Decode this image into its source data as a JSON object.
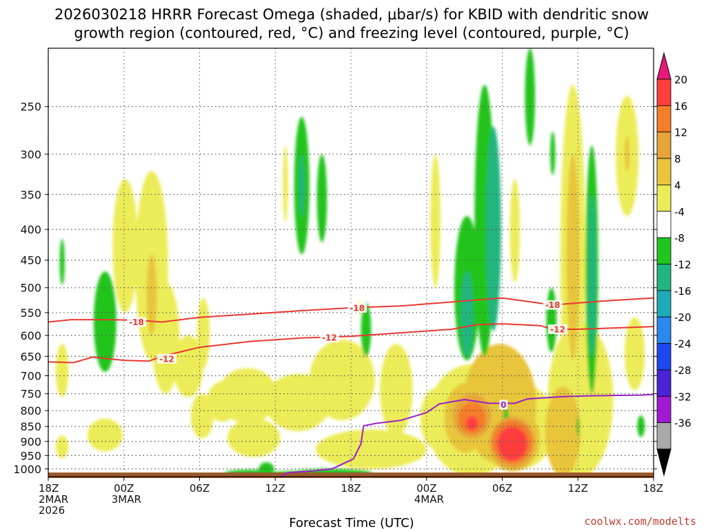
{
  "chart_data": {
    "type": "heatmap",
    "title_lines": [
      "2026030218 HRRR Forecast Omega (shaded, μbar/s) for KBID with dendritic snow",
      "growth region (contoured, red, °C) and freezing level (contoured, purple, °C)"
    ],
    "xlabel": "Forecast Time (UTC)",
    "credit": "coolwx.com/modelts",
    "x_ticks": [
      {
        "h": 0,
        "lines": [
          "18Z",
          "2MAR",
          "2026"
        ]
      },
      {
        "h": 6,
        "lines": [
          "00Z",
          "3MAR"
        ]
      },
      {
        "h": 12,
        "lines": [
          "06Z"
        ]
      },
      {
        "h": 18,
        "lines": [
          "12Z"
        ]
      },
      {
        "h": 24,
        "lines": [
          "18Z"
        ]
      },
      {
        "h": 30,
        "lines": [
          "00Z",
          "4MAR"
        ]
      },
      {
        "h": 36,
        "lines": [
          "06Z"
        ]
      },
      {
        "h": 42,
        "lines": [
          "12Z"
        ]
      },
      {
        "h": 48,
        "lines": [
          "18Z"
        ]
      }
    ],
    "xlim_hours": [
      0,
      48
    ],
    "y_pressure_ticks": [
      250,
      300,
      350,
      400,
      450,
      500,
      550,
      600,
      650,
      700,
      750,
      800,
      850,
      900,
      950,
      1000
    ],
    "ylim_hPa": [
      200,
      1030
    ],
    "colorbar": {
      "labels": [
        "20",
        "16",
        "12",
        "8",
        "4",
        "-4",
        "-8",
        "-12",
        "-16",
        "-20",
        "-24",
        "-28",
        "-32",
        "-36"
      ],
      "levels": [
        20,
        16,
        12,
        8,
        4,
        -4,
        -8,
        -12,
        -16,
        -20,
        -24,
        -28,
        -32,
        -36
      ],
      "colors": [
        "#ff3e3e",
        "#f47d2a",
        "#e6a43a",
        "#e8c53b",
        "#ecec58",
        "#ffffff",
        "#22c41f",
        "#22b57e",
        "#20aab8",
        "#2a88ee",
        "#1c48ee",
        "#4a24d6",
        "#a01ad0",
        "#a8a8a8"
      ],
      "top_color": "#e8187a",
      "bottom_color": "#000000"
    },
    "omega_blobs": [
      {
        "h": 1.1,
        "p": 690,
        "rh": 0.5,
        "rp": 70,
        "level": 4
      },
      {
        "h": 1.1,
        "p": 920,
        "rh": 0.5,
        "rp": 40,
        "level": 4
      },
      {
        "h": 1.1,
        "p": 455,
        "rh": 0.2,
        "rp": 40,
        "level": -8
      },
      {
        "h": 4.5,
        "p": 580,
        "rh": 0.9,
        "rp": 110,
        "level": -8
      },
      {
        "h": 4.5,
        "p": 880,
        "rh": 1.4,
        "rp": 55,
        "level": 4
      },
      {
        "h": 6.1,
        "p": 440,
        "rh": 1.0,
        "rp": 110,
        "level": 4
      },
      {
        "h": 8.2,
        "p": 490,
        "rh": 1.3,
        "rp": 170,
        "level": 4
      },
      {
        "h": 8.2,
        "p": 520,
        "rh": 0.4,
        "rp": 80,
        "level": 8
      },
      {
        "h": 9.3,
        "p": 620,
        "rh": 1.1,
        "rp": 130,
        "level": 4
      },
      {
        "h": 11.1,
        "p": 680,
        "rh": 1.2,
        "rp": 80,
        "level": 4
      },
      {
        "h": 12.3,
        "p": 600,
        "rh": 0.5,
        "rp": 80,
        "level": 4
      },
      {
        "h": 12.2,
        "p": 820,
        "rh": 0.9,
        "rp": 70,
        "level": 4
      },
      {
        "h": 13.8,
        "p": 775,
        "rh": 1.2,
        "rp": 60,
        "level": 4
      },
      {
        "h": 15.8,
        "p": 760,
        "rh": 2.4,
        "rp": 80,
        "level": 4
      },
      {
        "h": 16.3,
        "p": 890,
        "rh": 2.1,
        "rp": 65,
        "level": 4
      },
      {
        "h": 19.8,
        "p": 780,
        "rh": 2.6,
        "rp": 85,
        "level": 4
      },
      {
        "h": 23.3,
        "p": 720,
        "rh": 2.6,
        "rp": 110,
        "level": 4
      },
      {
        "h": 25.6,
        "p": 930,
        "rh": 4.4,
        "rp": 70,
        "level": 4
      },
      {
        "h": 27.6,
        "p": 750,
        "rh": 1.3,
        "rp": 130,
        "level": 4
      },
      {
        "h": 24.7,
        "p": 540,
        "rh": 0.2,
        "rp": 12,
        "level": 4
      },
      {
        "h": 18.8,
        "p": 340,
        "rh": 0.2,
        "rp": 50,
        "level": 4
      },
      {
        "h": 20.1,
        "p": 350,
        "rh": 0.6,
        "rp": 90,
        "level": -8
      },
      {
        "h": 20.1,
        "p": 340,
        "rh": 0.2,
        "rp": 40,
        "level": -12
      },
      {
        "h": 21.7,
        "p": 360,
        "rh": 0.4,
        "rp": 60,
        "level": -8
      },
      {
        "h": 25.2,
        "p": 590,
        "rh": 0.4,
        "rp": 60,
        "level": -8
      },
      {
        "h": 30.7,
        "p": 400,
        "rh": 0.4,
        "rp": 100,
        "level": 4
      },
      {
        "h": 30.7,
        "p": 830,
        "rh": 1.2,
        "rp": 95,
        "level": 4
      },
      {
        "h": 33.6,
        "p": 850,
        "rh": 3.6,
        "rp": 180,
        "level": 4
      },
      {
        "h": 35.8,
        "p": 800,
        "rh": 2.9,
        "rp": 180,
        "level": 8
      },
      {
        "h": 37.4,
        "p": 860,
        "rh": 2.8,
        "rp": 140,
        "level": 4
      },
      {
        "h": 33.1,
        "p": 830,
        "rh": 1.7,
        "rp": 110,
        "level": 8
      },
      {
        "h": 33.6,
        "p": 820,
        "rh": 1.5,
        "rp": 70,
        "level": 12
      },
      {
        "h": 33.6,
        "p": 825,
        "rh": 1.1,
        "rp": 50,
        "level": 16
      },
      {
        "h": 33.6,
        "p": 840,
        "rh": 0.5,
        "rp": 22,
        "level": 20
      },
      {
        "h": 36.8,
        "p": 900,
        "rh": 2.2,
        "rp": 110,
        "level": 8
      },
      {
        "h": 36.8,
        "p": 910,
        "rh": 1.8,
        "rp": 90,
        "level": 12
      },
      {
        "h": 36.8,
        "p": 905,
        "rh": 1.6,
        "rp": 75,
        "level": 16
      },
      {
        "h": 36.8,
        "p": 910,
        "rh": 1.2,
        "rp": 60,
        "level": 20
      },
      {
        "h": 34.6,
        "p": 440,
        "rh": 0.8,
        "rp": 210,
        "level": -8
      },
      {
        "h": 33.2,
        "p": 520,
        "rh": 1.0,
        "rp": 140,
        "level": -8
      },
      {
        "h": 33.2,
        "p": 560,
        "rh": 0.5,
        "rp": 90,
        "level": -12
      },
      {
        "h": 35.3,
        "p": 430,
        "rh": 0.6,
        "rp": 160,
        "level": -12
      },
      {
        "h": 36.3,
        "p": 820,
        "rh": 0.2,
        "rp": 30,
        "level": -8
      },
      {
        "h": 38.2,
        "p": 220,
        "rh": 0.4,
        "rp": 70,
        "level": -8
      },
      {
        "h": 37.0,
        "p": 410,
        "rh": 0.4,
        "rp": 80,
        "level": 4
      },
      {
        "h": 39.9,
        "p": 570,
        "rh": 0.4,
        "rp": 70,
        "level": -8
      },
      {
        "h": 41.6,
        "p": 560,
        "rh": 1.0,
        "rp": 330,
        "level": 4
      },
      {
        "h": 41.6,
        "p": 480,
        "rh": 0.5,
        "rp": 180,
        "level": 8
      },
      {
        "h": 43.1,
        "p": 520,
        "rh": 0.5,
        "rp": 230,
        "level": -8
      },
      {
        "h": 43.1,
        "p": 500,
        "rh": 0.3,
        "rp": 150,
        "level": -12
      },
      {
        "h": 42.2,
        "p": 800,
        "rh": 2.6,
        "rp": 230,
        "level": 4
      },
      {
        "h": 40.8,
        "p": 880,
        "rh": 1.4,
        "rp": 150,
        "level": 8
      },
      {
        "h": 40.0,
        "p": 300,
        "rh": 0.2,
        "rp": 25,
        "level": -8
      },
      {
        "h": 45.9,
        "p": 310,
        "rh": 0.9,
        "rp": 70,
        "level": 4
      },
      {
        "h": 45.9,
        "p": 300,
        "rh": 0.2,
        "rp": 20,
        "level": 8
      },
      {
        "h": 46.5,
        "p": 650,
        "rh": 0.8,
        "rp": 90,
        "level": 4
      },
      {
        "h": 47.0,
        "p": 850,
        "rh": 0.3,
        "rp": 35,
        "level": -8
      },
      {
        "h": 42.0,
        "p": 850,
        "rh": 0.1,
        "rp": 30,
        "level": -8
      },
      {
        "h": 22.5,
        "p": 1015,
        "rh": 3.2,
        "rp": 15,
        "level": -8
      },
      {
        "h": 20.0,
        "p": 1020,
        "rh": 2.8,
        "rp": 12,
        "level": -8
      },
      {
        "h": 17.3,
        "p": 1000,
        "rh": 0.6,
        "rp": 25,
        "level": -8
      },
      {
        "h": 16.0,
        "p": 1015,
        "rh": 2.0,
        "rp": 12,
        "level": -8
      }
    ],
    "contours": [
      {
        "label": "-18",
        "color": "#e8372f",
        "points": [
          [
            0,
            570
          ],
          [
            1.8,
            565
          ],
          [
            4.5,
            565
          ],
          [
            7,
            566
          ],
          [
            9,
            570
          ],
          [
            12,
            560
          ],
          [
            16,
            553
          ],
          [
            20,
            546
          ],
          [
            24,
            540
          ],
          [
            28,
            536
          ],
          [
            32,
            528
          ],
          [
            36,
            520
          ],
          [
            40,
            534
          ],
          [
            44,
            526
          ],
          [
            48,
            520
          ]
        ],
        "label_at": [
          [
            7,
            570
          ],
          [
            24.5,
            540
          ],
          [
            40,
            534
          ]
        ]
      },
      {
        "label": "-12",
        "color": "#e8372f",
        "points": [
          [
            0,
            664
          ],
          [
            2,
            666
          ],
          [
            3.5,
            652
          ],
          [
            6,
            660
          ],
          [
            8,
            662
          ],
          [
            9,
            650
          ],
          [
            12,
            628
          ],
          [
            16,
            614
          ],
          [
            20,
            606
          ],
          [
            24,
            602
          ],
          [
            28,
            594
          ],
          [
            32,
            586
          ],
          [
            34,
            576
          ],
          [
            36,
            574
          ],
          [
            39,
            578
          ],
          [
            40,
            586
          ],
          [
            42,
            586
          ],
          [
            44,
            584
          ],
          [
            48,
            580
          ]
        ],
        "label_at": [
          [
            9.4,
            656
          ],
          [
            22.3,
            605
          ],
          [
            40.4,
            586
          ]
        ]
      },
      {
        "label": "0",
        "color": "#9a1ec7",
        "points": [
          [
            18.5,
            1030
          ],
          [
            19,
            1014
          ],
          [
            21,
            1008
          ],
          [
            22.5,
            1000
          ],
          [
            24.2,
            962
          ],
          [
            24.8,
            908
          ],
          [
            25,
            848
          ],
          [
            26,
            840
          ],
          [
            28,
            830
          ],
          [
            30,
            806
          ],
          [
            31,
            780
          ],
          [
            33,
            767
          ],
          [
            35,
            778
          ],
          [
            37,
            778
          ],
          [
            38,
            765
          ],
          [
            41,
            758
          ],
          [
            43,
            756
          ],
          [
            47,
            754
          ],
          [
            48,
            752
          ]
        ],
        "label_at": [
          [
            36.1,
            782
          ]
        ]
      }
    ]
  }
}
